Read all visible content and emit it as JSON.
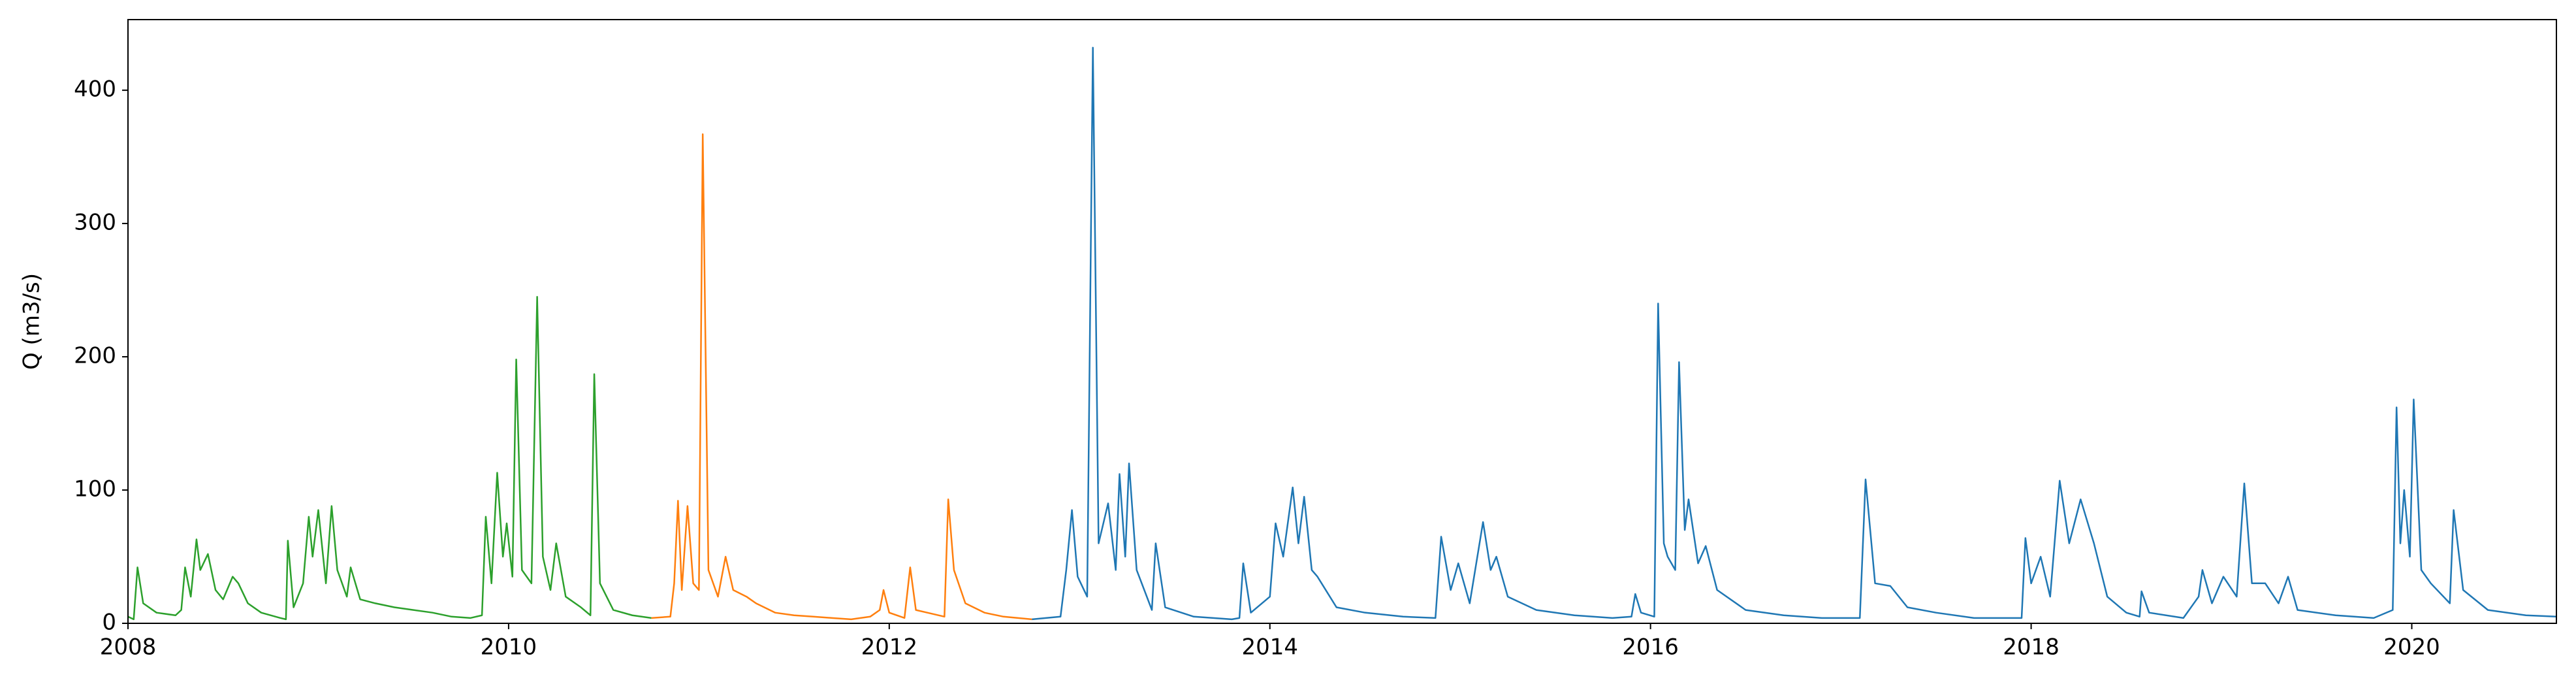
{
  "chart_data": {
    "type": "line",
    "y_label": "Q (m3/s)",
    "xlim": [
      2008,
      2020.76
    ],
    "xticks": [
      2008,
      2010,
      2012,
      2014,
      2016,
      2018,
      2020
    ],
    "ylim": [
      0,
      453
    ],
    "yticks": [
      0,
      100,
      200,
      300,
      400
    ],
    "grid": false,
    "series": [
      {
        "color": "#2ca02c",
        "x": [
          2008.0,
          2008.03,
          2008.05,
          2008.08,
          2008.15,
          2008.25,
          2008.28,
          2008.3,
          2008.33,
          2008.36,
          2008.38,
          2008.42,
          2008.46,
          2008.5,
          2008.55,
          2008.58,
          2008.63,
          2008.7,
          2008.8,
          2008.83,
          2008.84,
          2008.87,
          2008.92,
          2008.95,
          2008.97,
          2009.0,
          2009.04,
          2009.07,
          2009.1,
          2009.15,
          2009.17,
          2009.22,
          2009.3,
          2009.4,
          2009.5,
          2009.6,
          2009.7,
          2009.8,
          2009.86,
          2009.88,
          2009.91,
          2009.94,
          2009.97,
          2009.99,
          2010.02,
          2010.04,
          2010.07,
          2010.12,
          2010.15,
          2010.18,
          2010.22,
          2010.25,
          2010.3,
          2010.38,
          2010.43,
          2010.45,
          2010.48,
          2010.55,
          2010.65,
          2010.75
        ],
        "values": [
          5,
          3,
          42,
          15,
          8,
          6,
          10,
          42,
          20,
          63,
          40,
          52,
          25,
          18,
          35,
          30,
          15,
          8,
          4,
          3,
          62,
          12,
          30,
          80,
          50,
          85,
          30,
          88,
          40,
          20,
          42,
          18,
          15,
          12,
          10,
          8,
          5,
          4,
          6,
          80,
          30,
          113,
          50,
          75,
          35,
          198,
          40,
          30,
          245,
          50,
          25,
          60,
          20,
          12,
          6,
          187,
          30,
          10,
          6,
          4
        ]
      },
      {
        "color": "#ff7f0e",
        "x": [
          2010.75,
          2010.85,
          2010.87,
          2010.89,
          2010.91,
          2010.94,
          2010.97,
          2011.0,
          2011.02,
          2011.05,
          2011.1,
          2011.14,
          2011.18,
          2011.25,
          2011.3,
          2011.4,
          2011.5,
          2011.6,
          2011.7,
          2011.8,
          2011.9,
          2011.95,
          2011.97,
          2012.0,
          2012.08,
          2012.11,
          2012.14,
          2012.2,
          2012.29,
          2012.31,
          2012.34,
          2012.4,
          2012.5,
          2012.6,
          2012.75
        ],
        "values": [
          4,
          5,
          30,
          92,
          25,
          88,
          30,
          25,
          367,
          40,
          20,
          50,
          25,
          20,
          15,
          8,
          6,
          5,
          4,
          3,
          5,
          10,
          25,
          8,
          4,
          42,
          10,
          8,
          5,
          93,
          40,
          15,
          8,
          5,
          3
        ]
      },
      {
        "color": "#1f77b4",
        "x": [
          2012.75,
          2012.9,
          2012.93,
          2012.96,
          2012.99,
          2013.04,
          2013.07,
          2013.1,
          2013.15,
          2013.19,
          2013.21,
          2013.24,
          2013.26,
          2013.3,
          2013.38,
          2013.4,
          2013.45,
          2013.6,
          2013.8,
          2013.84,
          2013.86,
          2013.9,
          2014.0,
          2014.03,
          2014.07,
          2014.12,
          2014.15,
          2014.18,
          2014.22,
          2014.25,
          2014.35,
          2014.5,
          2014.7,
          2014.87,
          2014.9,
          2014.95,
          2014.99,
          2015.05,
          2015.12,
          2015.16,
          2015.19,
          2015.25,
          2015.4,
          2015.6,
          2015.8,
          2015.9,
          2015.92,
          2015.95,
          2016.02,
          2016.04,
          2016.07,
          2016.09,
          2016.13,
          2016.15,
          2016.18,
          2016.2,
          2016.25,
          2016.29,
          2016.35,
          2016.5,
          2016.7,
          2016.9,
          2017.1,
          2017.13,
          2017.18,
          2017.26,
          2017.35,
          2017.5,
          2017.7,
          2017.95,
          2017.97,
          2018.0,
          2018.05,
          2018.1,
          2018.15,
          2018.2,
          2018.26,
          2018.33,
          2018.4,
          2018.5,
          2018.57,
          2018.58,
          2018.62,
          2018.8,
          2018.88,
          2018.9,
          2018.95,
          2019.01,
          2019.08,
          2019.12,
          2019.16,
          2019.23,
          2019.3,
          2019.35,
          2019.4,
          2019.6,
          2019.8,
          2019.9,
          2019.92,
          2019.94,
          2019.96,
          2019.99,
          2020.01,
          2020.05,
          2020.1,
          2020.2,
          2020.22,
          2020.27,
          2020.4,
          2020.6,
          2020.76
        ],
        "values": [
          3,
          5,
          40,
          85,
          35,
          20,
          432,
          60,
          90,
          40,
          112,
          50,
          120,
          40,
          10,
          60,
          12,
          5,
          3,
          4,
          45,
          8,
          20,
          75,
          50,
          102,
          60,
          95,
          40,
          35,
          12,
          8,
          5,
          4,
          65,
          25,
          45,
          15,
          76,
          40,
          50,
          20,
          10,
          6,
          4,
          5,
          22,
          8,
          5,
          240,
          60,
          50,
          40,
          196,
          70,
          93,
          45,
          58,
          25,
          10,
          6,
          4,
          4,
          108,
          30,
          28,
          12,
          8,
          4,
          4,
          64,
          30,
          50,
          20,
          107,
          60,
          93,
          60,
          20,
          8,
          5,
          24,
          8,
          4,
          20,
          40,
          15,
          35,
          20,
          105,
          30,
          30,
          15,
          35,
          10,
          6,
          4,
          10,
          162,
          60,
          100,
          50,
          168,
          40,
          30,
          15,
          85,
          25,
          10,
          6,
          5
        ]
      }
    ]
  }
}
